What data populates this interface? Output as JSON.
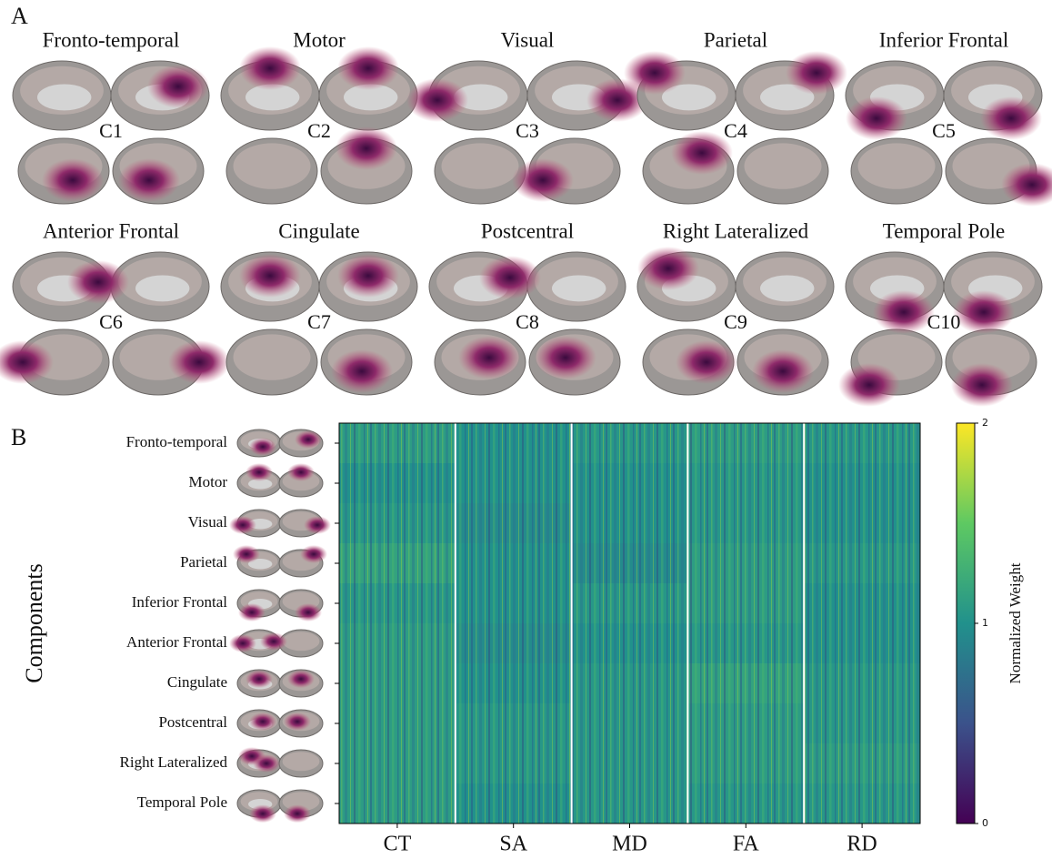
{
  "panel_a": {
    "label": "A",
    "components": [
      {
        "title": "Fronto-temporal",
        "code": "C1"
      },
      {
        "title": "Motor",
        "code": "C2"
      },
      {
        "title": "Visual",
        "code": "C3"
      },
      {
        "title": "Parietal",
        "code": "C4"
      },
      {
        "title": "Inferior Frontal",
        "code": "C5"
      },
      {
        "title": "Anterior Frontal",
        "code": "C6"
      },
      {
        "title": "Cingulate",
        "code": "C7"
      },
      {
        "title": "Postcentral",
        "code": "C8"
      },
      {
        "title": "Right Lateralized",
        "code": "C9"
      },
      {
        "title": "Temporal Pole",
        "code": "C10"
      }
    ]
  },
  "panel_b": {
    "label": "B",
    "type": "heatmap",
    "y_label": "Components",
    "rows": [
      "Fronto-temporal",
      "Motor",
      "Visual",
      "Parietal",
      "Inferior Frontal",
      "Anterior Frontal",
      "Cingulate",
      "Postcentral",
      "Right Lateralized",
      "Temporal Pole"
    ],
    "columns": [
      "CT",
      "SA",
      "MD",
      "FA",
      "RD"
    ],
    "values": [
      [
        1.1,
        1.0,
        1.05,
        1.1,
        1.05
      ],
      [
        1.0,
        1.0,
        1.0,
        1.05,
        1.0
      ],
      [
        1.05,
        0.95,
        1.0,
        1.05,
        1.0
      ],
      [
        1.15,
        1.0,
        0.95,
        1.1,
        1.05
      ],
      [
        1.05,
        1.0,
        1.05,
        1.1,
        1.0
      ],
      [
        1.1,
        0.95,
        1.0,
        1.05,
        1.0
      ],
      [
        1.1,
        1.0,
        1.05,
        1.15,
        1.05
      ],
      [
        1.1,
        1.05,
        1.05,
        1.1,
        1.05
      ],
      [
        1.1,
        1.05,
        1.05,
        1.1,
        1.1
      ],
      [
        1.1,
        1.0,
        1.05,
        1.05,
        1.05
      ]
    ],
    "colorbar": {
      "label": "Normalized Weight",
      "lim": [
        0,
        2
      ],
      "ticks": [
        0,
        1,
        2
      ]
    }
  }
}
